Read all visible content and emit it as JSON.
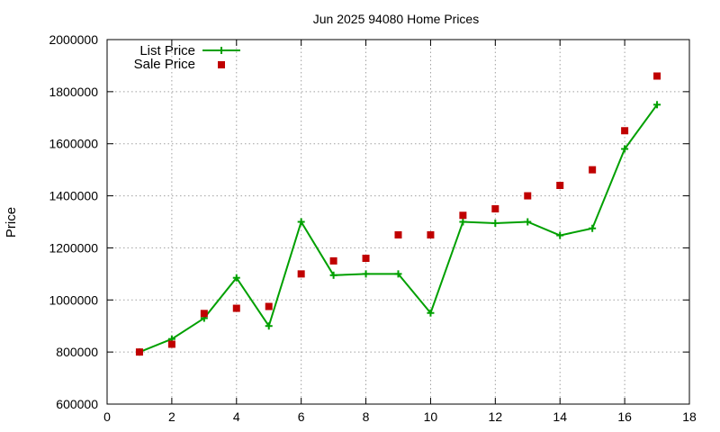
{
  "chart_data": {
    "type": "line",
    "title": "Jun 2025 94080 Home Prices",
    "xlabel": "",
    "ylabel": "Price",
    "xlim": [
      0,
      18
    ],
    "ylim": [
      600000,
      2000000
    ],
    "x_ticks": [
      0,
      2,
      4,
      6,
      8,
      10,
      12,
      14,
      16,
      18
    ],
    "y_ticks": [
      600000,
      800000,
      1000000,
      1200000,
      1400000,
      1600000,
      1800000,
      2000000
    ],
    "grid": true,
    "legend_position": "top-left",
    "x": [
      1,
      2,
      3,
      4,
      5,
      6,
      7,
      8,
      9,
      10,
      11,
      12,
      13,
      14,
      15,
      16,
      17
    ],
    "series": [
      {
        "name": "List Price",
        "style": "line-with-plus-markers",
        "color": "#00a000",
        "values": [
          800000,
          850000,
          930000,
          1085000,
          900000,
          1300000,
          1095000,
          1100000,
          1100000,
          950000,
          1300000,
          1295000,
          1300000,
          1248000,
          1275000,
          1580000,
          1750000
        ]
      },
      {
        "name": "Sale Price",
        "style": "square-points",
        "color": "#c00000",
        "values": [
          800000,
          830000,
          948000,
          968000,
          975000,
          1100000,
          1150000,
          1160000,
          1250000,
          1250000,
          1325000,
          1350000,
          1400000,
          1440000,
          1500000,
          1650000,
          1860000
        ]
      }
    ]
  }
}
